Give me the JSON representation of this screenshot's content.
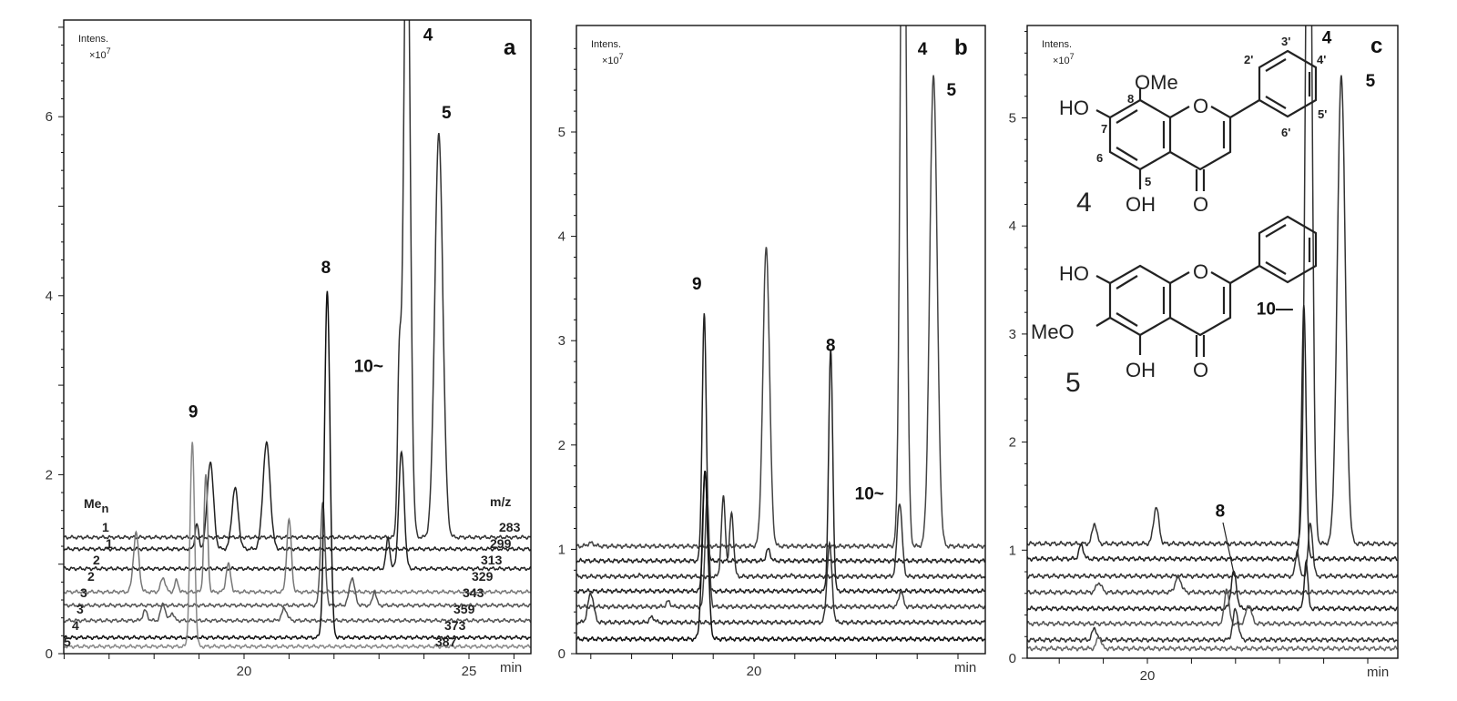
{
  "chart_data": [
    {
      "type": "line",
      "panel_label": "a",
      "ylabel": "Intens.",
      "yunit": "×10",
      "yexp": "7",
      "xlabel": "min",
      "xlim": [
        16.0,
        26.4
      ],
      "ylim": [
        0,
        7.1
      ],
      "yticks": [
        0,
        2,
        4,
        6
      ],
      "xticks": [
        20,
        25
      ],
      "trace_header_left": "Me",
      "trace_header_left_sub": "n",
      "trace_header_right": "m/z",
      "traces": [
        {
          "mz": "283",
          "men": "1",
          "baseline": 1.3,
          "color": "#333333",
          "peaks": [
            [
              23.62,
              9,
              0.07
            ],
            [
              24.33,
              5.8,
              0.09
            ],
            [
              23.45,
              3.1,
              0.04
            ]
          ]
        },
        {
          "mz": "299",
          "men": "1",
          "baseline": 1.17,
          "color": "#222222",
          "peaks": [
            [
              19.25,
              2.15,
              0.07
            ],
            [
              19.8,
              1.85,
              0.07
            ],
            [
              20.5,
              2.35,
              0.08
            ],
            [
              18.95,
              1.45,
              0.04
            ]
          ]
        },
        {
          "mz": "313",
          "men": "2",
          "baseline": 0.95,
          "color": "#222222",
          "peaks": [
            [
              23.5,
              2.25,
              0.06
            ],
            [
              23.2,
              1.3,
              0.04
            ]
          ]
        },
        {
          "mz": "329",
          "men": "2",
          "baseline": 0.69,
          "color": "#777777",
          "peaks": [
            [
              17.6,
              1.35,
              0.06
            ],
            [
              19.65,
              1.0,
              0.05
            ],
            [
              21.0,
              1.5,
              0.05
            ],
            [
              18.2,
              0.85,
              0.05
            ],
            [
              18.5,
              0.82,
              0.04
            ],
            [
              19.15,
              2.0,
              0.04
            ]
          ]
        },
        {
          "mz": "343",
          "men": "3",
          "baseline": 0.54,
          "color": "#555555",
          "peaks": [
            [
              21.75,
              1.7,
              0.05
            ],
            [
              22.4,
              0.85,
              0.06
            ],
            [
              22.9,
              0.7,
              0.04
            ]
          ]
        },
        {
          "mz": "359",
          "men": "3",
          "baseline": 0.37,
          "color": "#555555",
          "peaks": [
            [
              17.8,
              0.48,
              0.05
            ],
            [
              18.2,
              0.56,
              0.05
            ],
            [
              18.4,
              0.46,
              0.04
            ],
            [
              20.9,
              0.5,
              0.06
            ]
          ]
        },
        {
          "mz": "373",
          "men": "4",
          "baseline": 0.18,
          "color": "#111111",
          "peaks": [
            [
              21.85,
              4.05,
              0.06
            ]
          ]
        },
        {
          "mz": "387",
          "men": "5",
          "baseline": 0.08,
          "color": "#888888",
          "peaks": [
            [
              18.85,
              2.35,
              0.05
            ]
          ]
        }
      ],
      "peak_labels": [
        {
          "text": "4",
          "rt": 24.09,
          "intensity": 6.85
        },
        {
          "text": "5",
          "rt": 24.5,
          "intensity": 5.98
        },
        {
          "text": "8",
          "rt": 21.82,
          "intensity": 4.25
        },
        {
          "text": "9",
          "rt": 18.87,
          "intensity": 2.64
        },
        {
          "text": "10~",
          "rt": 22.77,
          "intensity": 3.15
        }
      ]
    },
    {
      "type": "line",
      "panel_label": "b",
      "ylabel": "Intens.",
      "yunit": "×10",
      "yexp": "7",
      "xlabel": "min",
      "xlim": [
        15.65,
        25.67
      ],
      "ylim": [
        0,
        6.0
      ],
      "yticks": [
        0,
        1,
        2,
        3,
        4,
        5
      ],
      "xticks": [
        20
      ],
      "traces": [
        {
          "baseline": 1.03,
          "color": "#444444",
          "peaks": [
            [
              23.66,
              9,
              0.07
            ],
            [
              24.4,
              5.55,
              0.09
            ],
            [
              20.3,
              3.9,
              0.08
            ],
            [
              16.0,
              1.06,
              0.08
            ]
          ]
        },
        {
          "baseline": 0.89,
          "color": "#222222",
          "peaks": [
            [
              18.78,
              3.25,
              0.05
            ],
            [
              20.35,
              1.0,
              0.05
            ]
          ]
        },
        {
          "baseline": 0.74,
          "color": "#333333",
          "peaks": [
            [
              19.25,
              1.5,
              0.05
            ],
            [
              19.45,
              1.35,
              0.05
            ],
            [
              17.2,
              0.75,
              0.06
            ],
            [
              20.9,
              0.75,
              0.06
            ],
            [
              23.57,
              1.45,
              0.06
            ]
          ]
        },
        {
          "baseline": 0.6,
          "color": "#222222",
          "peaks": [
            [
              21.88,
              2.9,
              0.05
            ],
            [
              18.8,
              1.75,
              0.05
            ]
          ]
        },
        {
          "baseline": 0.45,
          "color": "#444444",
          "peaks": [
            [
              17.9,
              0.5,
              0.05
            ],
            [
              23.6,
              0.6,
              0.05
            ],
            [
              18.85,
              1.5,
              0.05
            ]
          ]
        },
        {
          "baseline": 0.3,
          "color": "#333333",
          "peaks": [
            [
              16.0,
              0.58,
              0.07
            ],
            [
              17.5,
              0.35,
              0.06
            ],
            [
              21.85,
              1.05,
              0.06
            ]
          ]
        },
        {
          "baseline": 0.14,
          "color": "#111111",
          "peaks": [
            [
              18.8,
              1.75,
              0.07
            ]
          ]
        }
      ],
      "peak_labels": [
        {
          "text": "4",
          "rt": 24.13,
          "intensity": 5.74
        },
        {
          "text": "5",
          "rt": 24.84,
          "intensity": 5.35
        },
        {
          "text": "9",
          "rt": 18.6,
          "intensity": 3.49
        },
        {
          "text": "8",
          "rt": 21.88,
          "intensity": 2.9
        },
        {
          "text": "10~",
          "rt": 22.83,
          "intensity": 1.48
        }
      ]
    },
    {
      "type": "line",
      "panel_label": "c",
      "ylabel": "Intens.",
      "yunit": "×10",
      "yexp": "7",
      "xlabel": "min",
      "xlim": [
        17.27,
        25.68
      ],
      "ylim": [
        0,
        5.86
      ],
      "yticks": [
        0,
        1,
        2,
        3,
        4,
        5
      ],
      "xticks": [
        20
      ],
      "traces": [
        {
          "baseline": 1.06,
          "color": "#333333",
          "peaks": [
            [
              23.66,
              9,
              0.07
            ],
            [
              24.4,
              5.4,
              0.09
            ],
            [
              18.8,
              1.25,
              0.05
            ],
            [
              20.2,
              1.4,
              0.06
            ]
          ]
        },
        {
          "baseline": 0.92,
          "color": "#222222",
          "peaks": [
            [
              23.55,
              3.25,
              0.05
            ],
            [
              18.5,
              1.05,
              0.05
            ]
          ]
        },
        {
          "baseline": 0.76,
          "color": "#333333",
          "peaks": [
            [
              23.7,
              1.25,
              0.05
            ],
            [
              23.4,
              1.0,
              0.04
            ]
          ]
        },
        {
          "baseline": 0.61,
          "color": "#444444",
          "peaks": [
            [
              20.7,
              0.75,
              0.07
            ],
            [
              18.9,
              0.7,
              0.06
            ]
          ]
        },
        {
          "baseline": 0.46,
          "color": "#222222",
          "peaks": [
            [
              21.96,
              0.8,
              0.06
            ],
            [
              23.6,
              0.9,
              0.04
            ]
          ]
        },
        {
          "baseline": 0.32,
          "color": "#555555",
          "peaks": [
            [
              21.8,
              0.65,
              0.05
            ],
            [
              22.3,
              0.5,
              0.06
            ]
          ]
        },
        {
          "baseline": 0.17,
          "color": "#333333",
          "peaks": [
            [
              22.0,
              0.45,
              0.06
            ],
            [
              18.8,
              0.28,
              0.05
            ]
          ]
        },
        {
          "baseline": 0.09,
          "color": "#666666",
          "peaks": [
            [
              18.9,
              0.2,
              0.05
            ]
          ]
        }
      ],
      "peak_labels": [
        {
          "text": "4",
          "rt": 24.07,
          "intensity": 5.69
        },
        {
          "text": "5",
          "rt": 25.06,
          "intensity": 5.29
        },
        {
          "text": "10—",
          "rt": 22.89,
          "intensity": 3.18
        },
        {
          "text": "8",
          "rt": 21.65,
          "intensity": 1.31
        }
      ],
      "structures": {
        "compound4": {
          "label": "4",
          "OMe": "OMe",
          "HO": "HO",
          "OH": "OH",
          "O_ring": "O",
          "O_carbonyl": "O",
          "positions": [
            "8",
            "7",
            "6",
            "5",
            "2'",
            "3'",
            "4'",
            "5'",
            "6'"
          ]
        },
        "compound5": {
          "label": "5",
          "HO": "HO",
          "MeO": "MeO",
          "OH": "OH",
          "O_ring": "O",
          "O_carbonyl": "O"
        }
      }
    }
  ]
}
